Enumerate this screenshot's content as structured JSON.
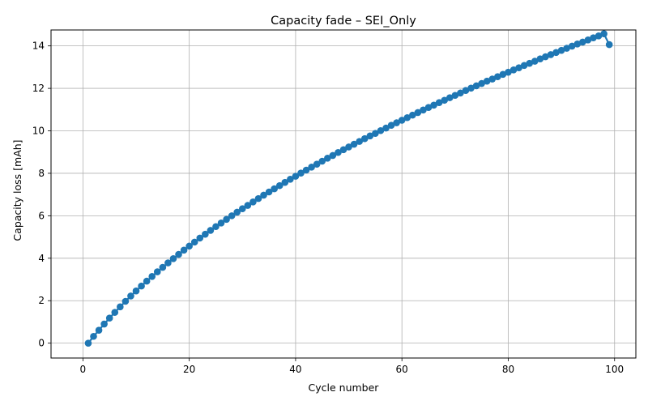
{
  "chart_data": {
    "type": "line",
    "title": "Capacity fade – SEI_Only",
    "xlabel": "Cycle number",
    "ylabel": "Capacity loss [mAh]",
    "xlim": [
      -6.0,
      104.0
    ],
    "ylim": [
      -0.7,
      14.75
    ],
    "xticks": [
      0,
      20,
      40,
      60,
      80,
      100
    ],
    "yticks": [
      0,
      2,
      4,
      6,
      8,
      10,
      12,
      14
    ],
    "grid": true,
    "marker": "circle",
    "series": [
      {
        "color": "#1f77b4",
        "x": [
          1,
          2,
          3,
          4,
          5,
          6,
          7,
          8,
          9,
          10,
          11,
          12,
          13,
          14,
          15,
          16,
          17,
          18,
          19,
          20,
          21,
          22,
          23,
          24,
          25,
          26,
          27,
          28,
          29,
          30,
          31,
          32,
          33,
          34,
          35,
          36,
          37,
          38,
          39,
          40,
          41,
          42,
          43,
          44,
          45,
          46,
          47,
          48,
          49,
          50,
          51,
          52,
          53,
          54,
          55,
          56,
          57,
          58,
          59,
          60,
          61,
          62,
          63,
          64,
          65,
          66,
          67,
          68,
          69,
          70,
          71,
          72,
          73,
          74,
          75,
          76,
          77,
          78,
          79,
          80,
          81,
          82,
          83,
          84,
          85,
          86,
          87,
          88,
          89,
          90,
          91,
          92,
          93,
          94,
          95,
          96,
          97,
          98,
          99
        ],
        "y": [
          0.0,
          0.32,
          0.61,
          0.9,
          1.18,
          1.45,
          1.71,
          1.97,
          2.22,
          2.46,
          2.69,
          2.92,
          3.14,
          3.36,
          3.57,
          3.78,
          3.98,
          4.18,
          4.38,
          4.57,
          4.76,
          4.95,
          5.13,
          5.31,
          5.49,
          5.66,
          5.83,
          6.0,
          6.17,
          6.33,
          6.49,
          6.65,
          6.81,
          6.97,
          7.12,
          7.27,
          7.42,
          7.57,
          7.72,
          7.86,
          8.01,
          8.15,
          8.29,
          8.43,
          8.57,
          8.71,
          8.84,
          8.98,
          9.11,
          9.24,
          9.37,
          9.5,
          9.63,
          9.76,
          9.88,
          10.01,
          10.13,
          10.26,
          10.38,
          10.5,
          10.62,
          10.74,
          10.86,
          10.98,
          11.1,
          11.21,
          11.33,
          11.44,
          11.56,
          11.67,
          11.78,
          11.9,
          12.01,
          12.12,
          12.23,
          12.34,
          12.44,
          12.55,
          12.66,
          12.76,
          12.87,
          12.97,
          13.08,
          13.18,
          13.28,
          13.39,
          13.49,
          13.59,
          13.69,
          13.79,
          13.89,
          13.99,
          14.09,
          14.18,
          14.28,
          14.38,
          14.47,
          14.57,
          14.06
        ]
      }
    ]
  }
}
